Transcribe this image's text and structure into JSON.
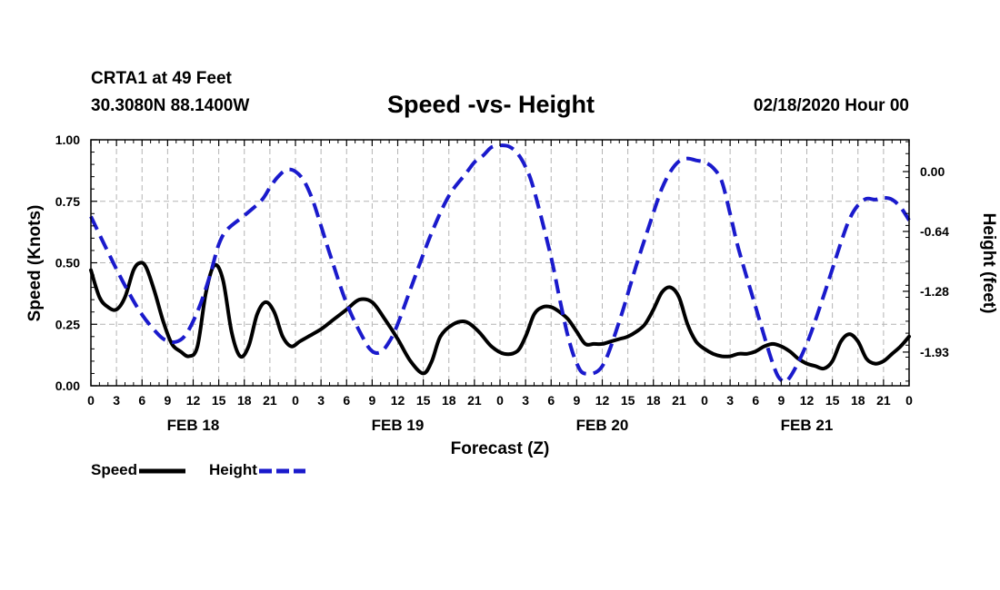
{
  "header": {
    "station": "CRTA1 at 49 Feet",
    "coords": "30.3080N 88.1400W",
    "title": "Speed -vs- Height",
    "datetime": "02/18/2020 Hour 00"
  },
  "chart_data": {
    "type": "line",
    "title": "Speed -vs- Height",
    "xlabel": "Forecast (Z)",
    "ylabel": "Speed (Knots)",
    "y2label": "Height (feet)",
    "xlim": [
      0,
      96
    ],
    "ylim": [
      0,
      1
    ],
    "y2lim": [
      -2.29,
      0.34
    ],
    "x_ticks": [
      0,
      3,
      6,
      9,
      12,
      15,
      18,
      21,
      24,
      27,
      30,
      33,
      36,
      39,
      42,
      45,
      48,
      51,
      54,
      57,
      60,
      63,
      66,
      69,
      72,
      75,
      78,
      81,
      84,
      87,
      90,
      93,
      96
    ],
    "x_tick_labels": [
      "0",
      "3",
      "6",
      "9",
      "12",
      "15",
      "18",
      "21",
      "0",
      "3",
      "6",
      "9",
      "12",
      "15",
      "18",
      "21",
      "0",
      "3",
      "6",
      "9",
      "12",
      "15",
      "18",
      "21",
      "0",
      "3",
      "6",
      "9",
      "12",
      "15",
      "18",
      "21",
      "0"
    ],
    "day_labels": [
      {
        "x": 12,
        "label": "FEB 18"
      },
      {
        "x": 36,
        "label": "FEB 19"
      },
      {
        "x": 60,
        "label": "FEB 20"
      },
      {
        "x": 84,
        "label": "FEB 21"
      }
    ],
    "y_ticks": [
      0,
      0.25,
      0.5,
      0.75,
      1.0
    ],
    "y_tick_labels": [
      "0.00",
      "0.25",
      "0.50",
      "0.75",
      "1.00"
    ],
    "y2_ticks": [
      0,
      -0.64,
      -1.28,
      -1.93
    ],
    "y2_tick_labels": [
      "0.00",
      "-0.64",
      "-1.28",
      "-1.93"
    ],
    "grid": true,
    "series": [
      {
        "name": "Speed",
        "axis": "left",
        "color": "#000000",
        "dash": "solid",
        "x": [
          0,
          1,
          2,
          3,
          4,
          5,
          5.8,
          6.5,
          7.5,
          8.5,
          9.5,
          10.5,
          11.5,
          12.5,
          13.5,
          14.5,
          15.5,
          16.5,
          17.5,
          18.5,
          19.5,
          20.5,
          21.5,
          22.5,
          23.5,
          24.5,
          25.5,
          27,
          28.5,
          30,
          31.5,
          33,
          34.5,
          36,
          37.5,
          39,
          40,
          41,
          42.5,
          44,
          45.5,
          47,
          48.5,
          50,
          51,
          52,
          53,
          54,
          55,
          56,
          57,
          58,
          59,
          60,
          61,
          62,
          63,
          64,
          65,
          66,
          67,
          68,
          69,
          70,
          71,
          72,
          73,
          74,
          75,
          76,
          77,
          78,
          79,
          80,
          81,
          82,
          83,
          84,
          85,
          86,
          87,
          88,
          89,
          90,
          91,
          92,
          93,
          94,
          95,
          96
        ],
        "y": [
          0.47,
          0.36,
          0.32,
          0.31,
          0.36,
          0.47,
          0.5,
          0.48,
          0.38,
          0.26,
          0.17,
          0.14,
          0.12,
          0.16,
          0.38,
          0.49,
          0.43,
          0.22,
          0.12,
          0.16,
          0.29,
          0.34,
          0.3,
          0.2,
          0.16,
          0.18,
          0.2,
          0.23,
          0.27,
          0.31,
          0.35,
          0.34,
          0.27,
          0.19,
          0.1,
          0.05,
          0.1,
          0.2,
          0.25,
          0.26,
          0.22,
          0.16,
          0.13,
          0.14,
          0.2,
          0.29,
          0.32,
          0.32,
          0.3,
          0.27,
          0.22,
          0.17,
          0.17,
          0.17,
          0.18,
          0.19,
          0.2,
          0.22,
          0.25,
          0.31,
          0.38,
          0.4,
          0.36,
          0.25,
          0.18,
          0.15,
          0.13,
          0.12,
          0.12,
          0.13,
          0.13,
          0.14,
          0.16,
          0.17,
          0.16,
          0.14,
          0.11,
          0.09,
          0.08,
          0.07,
          0.1,
          0.18,
          0.21,
          0.18,
          0.11,
          0.09,
          0.1,
          0.13,
          0.16,
          0.2
        ]
      },
      {
        "name": "Height",
        "axis": "right",
        "color": "#1a1acc",
        "dash": "dashed",
        "x": [
          0,
          2,
          4,
          6,
          8,
          9,
          10,
          11,
          12,
          13,
          14,
          15,
          16,
          18,
          20,
          21,
          22,
          23,
          24,
          25,
          26,
          27,
          28,
          30,
          32,
          33,
          34,
          35,
          36,
          38,
          40,
          42,
          44,
          45,
          46,
          47,
          48,
          49,
          50,
          51,
          52,
          54,
          55,
          56,
          57,
          58,
          60,
          62,
          64,
          66,
          67,
          68,
          69,
          70,
          71,
          72,
          73,
          74,
          75,
          76,
          78,
          80,
          81,
          82,
          84,
          86,
          88,
          89,
          90,
          91,
          92,
          93,
          94,
          95,
          96
        ],
        "y": [
          -0.48,
          -0.86,
          -1.22,
          -1.53,
          -1.75,
          -1.81,
          -1.82,
          -1.76,
          -1.6,
          -1.38,
          -1.1,
          -0.78,
          -0.62,
          -0.47,
          -0.31,
          -0.17,
          -0.05,
          0.02,
          0.0,
          -0.1,
          -0.3,
          -0.58,
          -0.87,
          -1.41,
          -1.79,
          -1.92,
          -1.93,
          -1.82,
          -1.63,
          -1.13,
          -0.65,
          -0.26,
          -0.02,
          0.1,
          0.17,
          0.26,
          0.28,
          0.27,
          0.2,
          0.05,
          -0.2,
          -0.92,
          -1.36,
          -1.77,
          -2.05,
          -2.16,
          -2.08,
          -1.6,
          -1.0,
          -0.44,
          -0.18,
          0.0,
          0.11,
          0.14,
          0.12,
          0.1,
          0.04,
          -0.1,
          -0.45,
          -0.83,
          -1.45,
          -2.05,
          -2.23,
          -2.2,
          -1.84,
          -1.32,
          -0.76,
          -0.51,
          -0.36,
          -0.29,
          -0.3,
          -0.28,
          -0.3,
          -0.38,
          -0.52
        ]
      }
    ]
  },
  "legend": {
    "speed_label": "Speed",
    "height_label": "Height"
  }
}
